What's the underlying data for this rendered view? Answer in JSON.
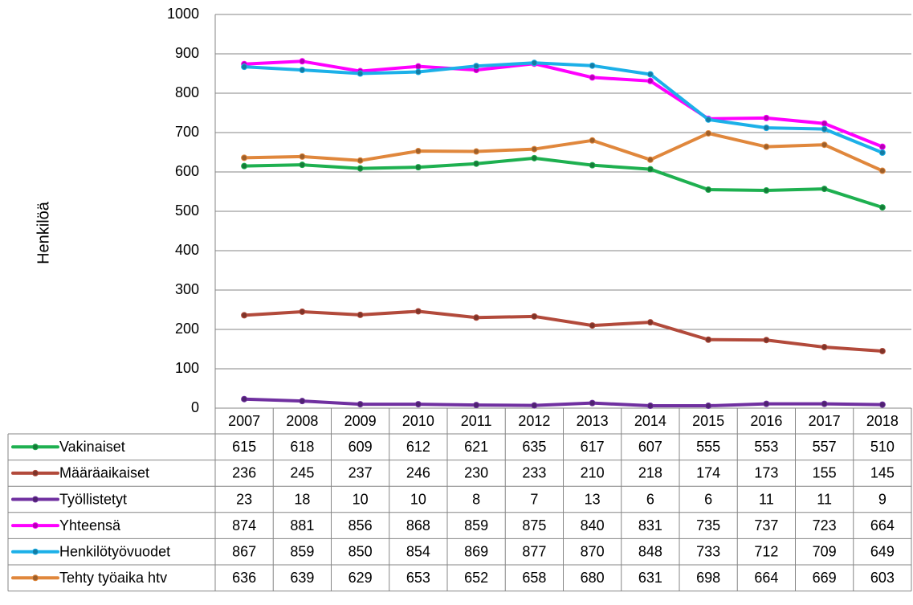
{
  "chart_data": {
    "type": "line",
    "y_label": "Henkilöä",
    "categories": [
      "2007",
      "2008",
      "2009",
      "2010",
      "2011",
      "2012",
      "2013",
      "2014",
      "2015",
      "2016",
      "2017",
      "2018"
    ],
    "ylim": [
      0,
      1000
    ],
    "yticks": [
      0,
      100,
      200,
      300,
      400,
      500,
      600,
      700,
      800,
      900,
      1000
    ],
    "grid": true,
    "series": [
      {
        "name": "Vakinaiset",
        "color": "#1eb050",
        "values": [
          615,
          618,
          609,
          612,
          621,
          635,
          617,
          607,
          555,
          553,
          557,
          510
        ]
      },
      {
        "name": "Määräaikaiset",
        "color": "#b24a3b",
        "values": [
          236,
          245,
          237,
          246,
          230,
          233,
          210,
          218,
          174,
          173,
          155,
          145
        ]
      },
      {
        "name": "Työllistetyt",
        "color": "#7030a0",
        "values": [
          23,
          18,
          10,
          10,
          8,
          7,
          13,
          6,
          6,
          11,
          11,
          9
        ]
      },
      {
        "name": "Yhteensä",
        "color": "#ff00ff",
        "values": [
          874,
          881,
          856,
          868,
          859,
          875,
          840,
          831,
          735,
          737,
          723,
          664
        ]
      },
      {
        "name": "Henkilötyövuodet",
        "color": "#1cb0e8",
        "values": [
          867,
          859,
          850,
          854,
          869,
          877,
          870,
          848,
          733,
          712,
          709,
          649
        ]
      },
      {
        "name": "Tehty työaika htv",
        "color": "#e0873c",
        "values": [
          636,
          639,
          629,
          653,
          652,
          658,
          680,
          631,
          698,
          664,
          669,
          603
        ]
      }
    ]
  }
}
